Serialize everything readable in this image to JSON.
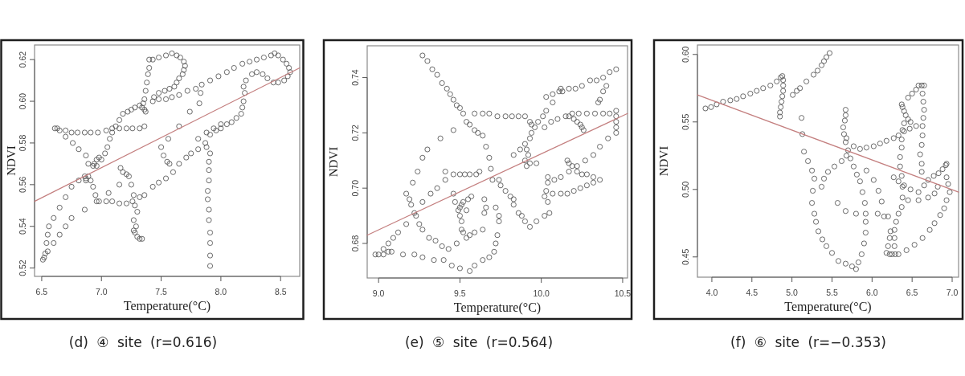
{
  "chart_data": [
    {
      "type": "scatter",
      "title": "(d) ④ site (r=0.616)",
      "xlabel": "Temperature(°C)",
      "ylabel": "NDVI",
      "xlim": [
        6.44,
        8.66
      ],
      "ylim": [
        0.516,
        0.627
      ],
      "xticks": [
        6.5,
        {
          "value": 7,
          "label": "7.0"
        },
        7.5,
        {
          "value": 8,
          "label": "8.0"
        },
        8.5
      ],
      "yticks": [
        0.52,
        0.54,
        0.56,
        0.58,
        {
          "value": 0.6,
          "label": "0.60"
        },
        0.62
      ],
      "series": [
        {
          "color": "#5a5a5a",
          "marker": "circle",
          "x": [
            6.51,
            6.52,
            6.53,
            6.55,
            6.54,
            6.55,
            6.56,
            6.6,
            6.65,
            6.7,
            6.75,
            6.81,
            6.6,
            6.65,
            6.7,
            6.75,
            6.86,
            6.61,
            6.63,
            6.65,
            6.7,
            6.75,
            6.8,
            6.86,
            6.91,
            6.97,
            7.04,
            7.09,
            7.15,
            7.21,
            7.26,
            7.32,
            7.36,
            6.7,
            6.76,
            6.81,
            6.87,
            6.89,
            6.86,
            6.87,
            6.89,
            6.87,
            6.94,
            6.96,
            6.98,
            7.0,
            6.93,
            6.96,
            6.96,
            6.98,
            7.04,
            7.09,
            7.15,
            7.21,
            7.26,
            7.32,
            7.36,
            6.91,
            6.93,
            6.95,
            7.03,
            7.05,
            7.07,
            7.09,
            7.12,
            7.15,
            7.18,
            7.22,
            7.25,
            7.28,
            7.32,
            7.35,
            7.36,
            7.37,
            7.38,
            7.39,
            7.4,
            7.4,
            7.34,
            7.36,
            7.37,
            7.16,
            7.18,
            7.21,
            7.23,
            7.25,
            7.27,
            7.28,
            7.3,
            7.27,
            7.28,
            7.3,
            7.32,
            7.34,
            7.29,
            7.27,
            7.06,
            7.15,
            7.43,
            7.48,
            7.54,
            7.59,
            7.63,
            7.66,
            7.69,
            7.7,
            7.69,
            7.68,
            7.65,
            7.63,
            7.61,
            7.57,
            7.53,
            7.48,
            7.44,
            7.65,
            7.72,
            7.79,
            7.84,
            7.91,
            7.98,
            8.05,
            8.11,
            8.18,
            8.24,
            8.3,
            8.36,
            8.42,
            8.45,
            8.48,
            8.52,
            8.55,
            8.57,
            8.58,
            8.56,
            8.53,
            8.48,
            8.44,
            8.39,
            8.35,
            8.3,
            8.26,
            8.21,
            8.19,
            8.2,
            8.19,
            8.18,
            8.17,
            8.13,
            8.09,
            8.05,
            8.0,
            7.96,
            7.91,
            7.87,
            7.91,
            7.9,
            7.9,
            7.9,
            7.89,
            7.89,
            7.9,
            7.9,
            7.91,
            7.91,
            7.91,
            7.91,
            7.43,
            7.48,
            7.54,
            7.6,
            7.65,
            7.71,
            7.75,
            7.81,
            7.88,
            7.81,
            7.88,
            7.94,
            8.0,
            7.56,
            7.65,
            7.74,
            7.83,
            7.82,
            7.5,
            7.52,
            7.55,
            7.57,
            7.43,
            7.48,
            7.54,
            7.59
          ],
          "values": [
            0.524,
            0.525,
            0.527,
            0.528,
            0.532,
            0.536,
            0.54,
            0.544,
            0.549,
            0.554,
            0.559,
            0.562,
            0.532,
            0.536,
            0.54,
            0.544,
            0.548,
            0.587,
            0.587,
            0.586,
            0.586,
            0.585,
            0.585,
            0.585,
            0.585,
            0.585,
            0.586,
            0.587,
            0.587,
            0.587,
            0.587,
            0.587,
            0.588,
            0.583,
            0.58,
            0.577,
            0.574,
            0.57,
            0.564,
            0.563,
            0.564,
            0.562,
            0.57,
            0.572,
            0.573,
            0.572,
            0.569,
            0.569,
            0.552,
            0.552,
            0.552,
            0.552,
            0.551,
            0.551,
            0.552,
            0.554,
            0.555,
            0.562,
            0.559,
            0.555,
            0.575,
            0.578,
            0.582,
            0.585,
            0.588,
            0.591,
            0.594,
            0.595,
            0.596,
            0.597,
            0.598,
            0.599,
            0.601,
            0.605,
            0.609,
            0.613,
            0.616,
            0.62,
            0.597,
            0.596,
            0.595,
            0.568,
            0.566,
            0.565,
            0.564,
            0.56,
            0.555,
            0.55,
            0.547,
            0.543,
            0.537,
            0.535,
            0.534,
            0.534,
            0.54,
            0.538,
            0.556,
            0.56,
            0.62,
            0.621,
            0.622,
            0.623,
            0.622,
            0.621,
            0.619,
            0.617,
            0.615,
            0.613,
            0.611,
            0.609,
            0.607,
            0.606,
            0.605,
            0.604,
            0.602,
            0.603,
            0.605,
            0.606,
            0.608,
            0.61,
            0.612,
            0.614,
            0.616,
            0.618,
            0.619,
            0.62,
            0.621,
            0.622,
            0.623,
            0.622,
            0.62,
            0.618,
            0.616,
            0.614,
            0.612,
            0.61,
            0.609,
            0.609,
            0.611,
            0.613,
            0.614,
            0.613,
            0.61,
            0.607,
            0.604,
            0.6,
            0.597,
            0.594,
            0.592,
            0.59,
            0.589,
            0.587,
            0.586,
            0.584,
            0.58,
            0.575,
            0.571,
            0.567,
            0.562,
            0.557,
            0.553,
            0.548,
            0.543,
            0.537,
            0.532,
            0.526,
            0.521,
            0.559,
            0.561,
            0.563,
            0.566,
            0.57,
            0.573,
            0.575,
            0.577,
            0.578,
            0.582,
            0.585,
            0.587,
            0.589,
            0.582,
            0.588,
            0.595,
            0.604,
            0.599,
            0.578,
            0.574,
            0.571,
            0.57,
            0.6,
            0.601,
            0.601,
            0.602
          ]
        },
        {
          "type": "line",
          "color": "#c47f7f",
          "marker": "none",
          "x": [
            6.44,
            8.66
          ],
          "values": [
            0.552,
            0.616
          ]
        }
      ]
    },
    {
      "type": "scatter",
      "title": "(e) ⑤ site (r=0.564)",
      "xlabel": "Temperature(°C)",
      "ylabel": "NDVI",
      "xlim": [
        8.93,
        10.53
      ],
      "ylim": [
        0.6675,
        0.7515
      ],
      "xticks": [
        {
          "value": 9,
          "label": "9.0"
        },
        9.5,
        {
          "value": 10,
          "label": "10.0"
        },
        10.5
      ],
      "yticks": [
        0.68,
        {
          "value": 0.7,
          "label": "0.70"
        },
        0.72,
        0.74
      ],
      "series": [
        {
          "color": "#5a5a5a",
          "marker": "circle",
          "x": [
            9.27,
            9.3,
            9.33,
            9.36,
            9.39,
            9.42,
            9.44,
            9.46,
            9.48,
            9.5,
            9.52,
            9.54,
            9.56,
            9.59,
            9.61,
            9.64,
            9.66,
            9.68,
            9.69,
            9.7,
            9.59,
            9.64,
            9.68,
            9.73,
            9.78,
            9.82,
            9.86,
            9.9,
            9.93,
            9.94,
            9.83,
            9.87,
            9.9,
            9.93,
            9.94,
            9.96,
            9.98,
            10.01,
            10.03,
            10.07,
            10.03,
            10.07,
            10.11,
            10.12,
            10.13,
            10.17,
            10.21,
            10.25,
            10.3,
            10.34,
            10.38,
            10.42,
            10.46,
            10.02,
            10.06,
            10.1,
            10.15,
            10.19,
            10.23,
            10.28,
            10.33,
            10.38,
            10.42,
            10.46,
            10.17,
            10.2,
            10.22,
            10.24,
            10.25,
            10.26,
            10.46,
            10.46,
            10.46,
            10.46,
            10.4,
            10.38,
            10.36,
            10.35,
            10.41,
            10.36,
            10.32,
            10.27,
            10.22,
            10.17,
            10.12,
            10.08,
            10.16,
            10.17,
            10.19,
            10.22,
            10.25,
            10.28,
            10.32,
            10.36,
            10.02,
            10.07,
            10.12,
            10.16,
            10.2,
            10.24,
            10.28,
            10.32,
            10.04,
            10.04,
            10.03,
            10.04,
            10.05,
            10.02,
            9.97,
            9.93,
            9.9,
            9.88,
            9.86,
            9.83,
            9.81,
            9.91,
            9.92,
            9.9,
            9.91,
            9.93,
            9.97,
            9.74,
            9.75,
            9.78,
            9.83,
            9.65,
            9.66,
            9.65,
            9.72,
            9.74,
            9.74,
            9.73,
            9.72,
            9.71,
            9.68,
            9.64,
            9.59,
            9.59,
            9.64,
            8.98,
            9.0,
            9.03,
            9.06,
            9.08,
            9.15,
            9.22,
            9.27,
            9.34,
            9.4,
            9.45,
            9.5,
            9.56,
            9.03,
            9.06,
            9.09,
            9.12,
            9.17,
            9.17,
            9.19,
            9.2,
            9.22,
            9.23,
            9.25,
            9.27,
            9.31,
            9.35,
            9.39,
            9.43,
            9.48,
            9.54,
            9.21,
            9.24,
            9.27,
            9.3,
            9.38,
            9.46,
            9.27,
            9.32,
            9.36,
            9.41,
            9.41,
            9.46,
            9.46,
            9.47,
            9.49,
            9.5,
            9.51,
            9.51,
            9.52,
            9.5,
            9.51,
            9.52,
            9.55,
            9.57,
            9.5,
            9.53,
            9.56,
            9.6,
            9.62,
            9.54,
            9.56
          ],
          "values": [
            0.748,
            0.746,
            0.743,
            0.741,
            0.738,
            0.736,
            0.734,
            0.732,
            0.73,
            0.729,
            0.727,
            0.724,
            0.723,
            0.721,
            0.72,
            0.719,
            0.715,
            0.711,
            0.707,
            0.703,
            0.727,
            0.727,
            0.727,
            0.726,
            0.726,
            0.726,
            0.726,
            0.726,
            0.724,
            0.723,
            0.712,
            0.714,
            0.716,
            0.718,
            0.72,
            0.722,
            0.724,
            0.726,
            0.728,
            0.731,
            0.733,
            0.734,
            0.735,
            0.736,
            0.735,
            0.736,
            0.736,
            0.737,
            0.739,
            0.739,
            0.74,
            0.742,
            0.743,
            0.722,
            0.724,
            0.725,
            0.726,
            0.727,
            0.727,
            0.727,
            0.727,
            0.727,
            0.727,
            0.728,
            0.726,
            0.725,
            0.724,
            0.723,
            0.722,
            0.721,
            0.726,
            0.724,
            0.722,
            0.72,
            0.737,
            0.735,
            0.732,
            0.731,
            0.718,
            0.715,
            0.712,
            0.71,
            0.708,
            0.706,
            0.704,
            0.703,
            0.71,
            0.709,
            0.708,
            0.706,
            0.705,
            0.705,
            0.704,
            0.703,
            0.697,
            0.698,
            0.698,
            0.698,
            0.699,
            0.7,
            0.701,
            0.702,
            0.704,
            0.702,
            0.699,
            0.695,
            0.691,
            0.69,
            0.688,
            0.686,
            0.688,
            0.69,
            0.691,
            0.694,
            0.697,
            0.714,
            0.712,
            0.71,
            0.708,
            0.709,
            0.709,
            0.703,
            0.701,
            0.699,
            0.696,
            0.696,
            0.693,
            0.691,
            0.693,
            0.69,
            0.688,
            0.683,
            0.68,
            0.677,
            0.675,
            0.674,
            0.672,
            0.684,
            0.685,
            0.676,
            0.676,
            0.676,
            0.677,
            0.677,
            0.676,
            0.676,
            0.675,
            0.674,
            0.674,
            0.672,
            0.671,
            0.67,
            0.678,
            0.68,
            0.682,
            0.684,
            0.687,
            0.698,
            0.696,
            0.694,
            0.691,
            0.69,
            0.687,
            0.685,
            0.682,
            0.681,
            0.679,
            0.678,
            0.68,
            0.682,
            0.702,
            0.706,
            0.711,
            0.714,
            0.718,
            0.721,
            0.695,
            0.698,
            0.7,
            0.703,
            0.706,
            0.705,
            0.698,
            0.695,
            0.692,
            0.69,
            0.688,
            0.685,
            0.684,
            0.693,
            0.694,
            0.695,
            0.696,
            0.697,
            0.705,
            0.705,
            0.705,
            0.705,
            0.706,
            0.692,
            0.683
          ]
        },
        {
          "type": "line",
          "color": "#c47f7f",
          "marker": "none",
          "x": [
            8.93,
            10.53
          ],
          "values": [
            0.683,
            0.727
          ]
        }
      ]
    },
    {
      "type": "scatter",
      "title": "(f) ⑥ site (r=−0.353)",
      "xlabel": "Temperature(°C)",
      "ylabel": "NDVI",
      "xlim": [
        3.82,
        7.08
      ],
      "ylim": [
        0.435,
        0.607
      ],
      "xticks": [
        {
          "value": 4,
          "label": "4.0"
        },
        4.5,
        {
          "value": 5,
          "label": "5.0"
        },
        5.5,
        {
          "value": 6,
          "label": "6.0"
        },
        6.5,
        {
          "value": 7,
          "label": "7.0"
        }
      ],
      "yticks": [
        0.45,
        {
          "value": 0.5,
          "label": "0.50"
        },
        0.55,
        {
          "value": 0.6,
          "label": "0.60"
        }
      ],
      "series": [
        {
          "color": "#5a5a5a",
          "marker": "circle",
          "x": [
            3.92,
            3.99,
            4.06,
            4.14,
            4.23,
            4.31,
            4.39,
            4.48,
            4.56,
            4.64,
            4.73,
            4.81,
            4.86,
            4.88,
            4.89,
            4.89,
            4.89,
            4.88,
            4.87,
            4.86,
            4.85,
            4.85,
            5.01,
            5.06,
            5.1,
            5.18,
            5.27,
            5.32,
            5.37,
            5.4,
            5.43,
            5.47,
            5.12,
            5.13,
            5.15,
            5.2,
            5.25,
            5.28,
            5.25,
            5.28,
            5.3,
            5.33,
            5.38,
            5.43,
            5.5,
            5.58,
            5.67,
            5.75,
            5.8,
            5.83,
            5.87,
            5.9,
            5.92,
            5.92,
            5.92,
            5.91,
            5.88,
            5.85,
            5.81,
            5.77,
            5.73,
            5.7,
            5.67,
            5.26,
            5.67,
            5.67,
            5.66,
            5.64,
            5.65,
            5.68,
            5.77,
            5.85,
            5.93,
            6.02,
            6.1,
            6.18,
            6.27,
            6.33,
            6.4,
            6.47,
            6.55,
            5.37,
            5.4,
            5.45,
            5.53,
            5.62,
            5.68,
            5.57,
            5.67,
            5.8,
            6.07,
            6.15,
            6.2,
            5.93,
            6.02,
            6.08,
            6.12,
            6.37,
            6.38,
            6.4,
            6.42,
            6.45,
            6.48,
            6.4,
            6.38,
            6.58,
            6.62,
            6.65,
            6.63,
            6.64,
            6.65,
            6.64,
            6.63,
            6.63,
            6.62,
            6.6,
            6.62,
            6.62,
            6.45,
            6.5,
            6.55,
            6.37,
            6.37,
            6.35,
            6.35,
            6.37,
            6.38,
            6.38,
            6.37,
            6.33,
            6.3,
            6.28,
            6.28,
            6.28,
            6.23,
            6.22,
            6.2,
            6.18,
            6.22,
            6.25,
            6.29,
            6.33,
            6.43,
            6.53,
            6.63,
            6.72,
            6.78,
            6.85,
            6.9,
            6.93,
            6.97,
            6.95,
            6.93,
            6.93,
            6.27,
            6.33,
            6.4,
            6.48,
            6.58,
            6.65,
            6.7,
            6.77,
            6.83,
            6.88,
            6.92,
            6.45,
            6.58,
            6.7,
            6.78,
            6.82
          ],
          "values": [
            0.56,
            0.561,
            0.563,
            0.565,
            0.566,
            0.567,
            0.569,
            0.571,
            0.573,
            0.575,
            0.577,
            0.58,
            0.583,
            0.584,
            0.581,
            0.577,
            0.573,
            0.569,
            0.565,
            0.561,
            0.557,
            0.554,
            0.57,
            0.573,
            0.575,
            0.58,
            0.585,
            0.588,
            0.592,
            0.595,
            0.598,
            0.601,
            0.553,
            0.541,
            0.528,
            0.521,
            0.514,
            0.508,
            0.49,
            0.482,
            0.476,
            0.469,
            0.463,
            0.458,
            0.453,
            0.447,
            0.445,
            0.443,
            0.441,
            0.446,
            0.452,
            0.46,
            0.468,
            0.476,
            0.482,
            0.49,
            0.498,
            0.506,
            0.511,
            0.517,
            0.523,
            0.529,
            0.535,
            0.499,
            0.559,
            0.555,
            0.551,
            0.546,
            0.541,
            0.538,
            0.532,
            0.53,
            0.531,
            0.532,
            0.534,
            0.536,
            0.538,
            0.54,
            0.543,
            0.545,
            0.547,
            0.502,
            0.508,
            0.513,
            0.517,
            0.521,
            0.525,
            0.49,
            0.484,
            0.482,
            0.482,
            0.48,
            0.48,
            0.514,
            0.507,
            0.499,
            0.491,
            0.563,
            0.561,
            0.558,
            0.555,
            0.552,
            0.55,
            0.549,
            0.544,
            0.577,
            0.577,
            0.577,
            0.571,
            0.565,
            0.559,
            0.553,
            0.547,
            0.54,
            0.533,
            0.526,
            0.519,
            0.513,
            0.568,
            0.571,
            0.574,
            0.537,
            0.531,
            0.524,
            0.517,
            0.51,
            0.502,
            0.494,
            0.487,
            0.482,
            0.476,
            0.47,
            0.464,
            0.458,
            0.469,
            0.464,
            0.458,
            0.453,
            0.452,
            0.452,
            0.452,
            0.452,
            0.455,
            0.459,
            0.464,
            0.47,
            0.475,
            0.481,
            0.486,
            0.492,
            0.498,
            0.504,
            0.509,
            0.519,
            0.509,
            0.506,
            0.503,
            0.5,
            0.498,
            0.503,
            0.507,
            0.51,
            0.512,
            0.515,
            0.518,
            0.492,
            0.492,
            0.494,
            0.497,
            0.502
          ]
        },
        {
          "type": "line",
          "color": "#c47f7f",
          "marker": "none",
          "x": [
            3.82,
            7.08
          ],
          "values": [
            0.57,
            0.498
          ]
        }
      ]
    }
  ]
}
